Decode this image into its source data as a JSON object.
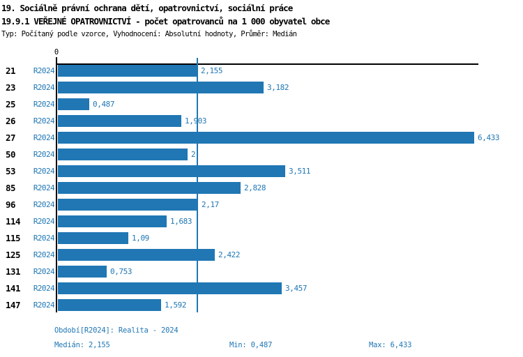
{
  "header": {
    "title_line1": "19. Sociálně právní ochrana dětí, opatrovnictví, sociální práce",
    "title_line2": "19.9.1 VEŘEJNÉ OPATROVNICTVÍ - počet opatrovanců na 1 000 obyvatel obce",
    "subtitle": "Typ: Počítaný podle vzorce, Vyhodnocení: Absolutní hodnoty, Průměr: Medián"
  },
  "chart_data": {
    "type": "bar",
    "orientation": "horizontal",
    "title": "19.9.1 VEŘEJNÉ OPATROVNICTVÍ - počet opatrovanců na 1 000 obyvatel obce",
    "categories": [
      "21",
      "23",
      "25",
      "26",
      "27",
      "50",
      "53",
      "85",
      "96",
      "114",
      "115",
      "125",
      "131",
      "141",
      "147"
    ],
    "series_label": "R2024",
    "values": [
      2.155,
      3.182,
      0.487,
      1.903,
      6.433,
      2,
      3.511,
      2.828,
      2.17,
      1.683,
      1.09,
      2.422,
      0.753,
      3.457,
      1.592
    ],
    "value_labels": [
      "2,155",
      "3,182",
      "0,487",
      "1,903",
      "6,433",
      "2",
      "3,511",
      "2,828",
      "2,17",
      "1,683",
      "1,09",
      "2,422",
      "0,753",
      "3,457",
      "1,592"
    ],
    "xlim": [
      0,
      6.49
    ],
    "x_tick_labels": [
      "0"
    ],
    "median_value": 2.155,
    "grid": "off",
    "legend": "none",
    "bar_color": "#2077b4",
    "median_line_color": "#2077b4",
    "axis_color": "#000000"
  },
  "footer": {
    "period": "Období[R2024]: Realita - 2024",
    "median": "Medián: 2,155",
    "min": "Min: 0,487",
    "max": "Max: 6,433"
  }
}
